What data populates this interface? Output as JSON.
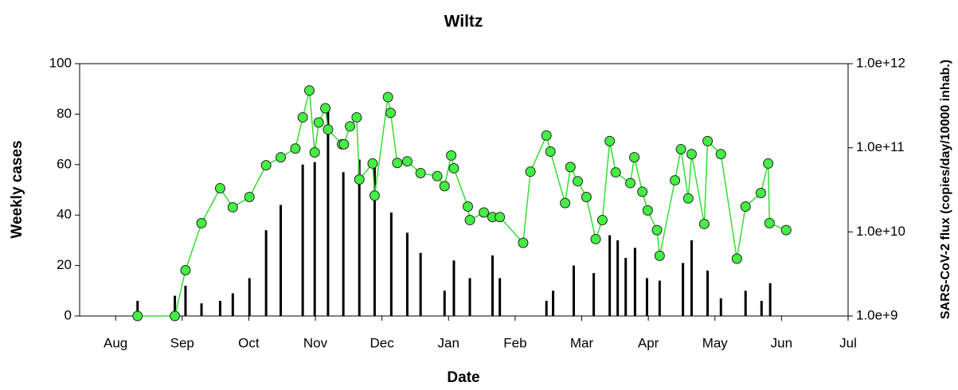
{
  "chart_data": {
    "type": "bar-line",
    "title": "Wiltz",
    "xlabel": "Date",
    "ylabel": "Weekly cases",
    "y2label": "SARS-CoV-2 flux (copies/day/10000 inhab.)",
    "xlim": [
      -0.54,
      11
    ],
    "xticks": [
      {
        "value": 0,
        "label": "Aug"
      },
      {
        "value": 1,
        "label": "Sep"
      },
      {
        "value": 2,
        "label": "Oct"
      },
      {
        "value": 3,
        "label": "Nov"
      },
      {
        "value": 4,
        "label": "Dec"
      },
      {
        "value": 5,
        "label": "Jan"
      },
      {
        "value": 6,
        "label": "Feb"
      },
      {
        "value": 7,
        "label": "Mar"
      },
      {
        "value": 8,
        "label": "Apr"
      },
      {
        "value": 9,
        "label": "May"
      },
      {
        "value": 10,
        "label": "Jun"
      },
      {
        "value": 11,
        "label": "Jul"
      }
    ],
    "ylim": [
      0,
      100
    ],
    "yticks": [
      0,
      20,
      40,
      60,
      80,
      100
    ],
    "y2lim": [
      1000000000,
      1000000000000
    ],
    "y2log": true,
    "y2ticks": [
      {
        "value": 1000000000,
        "label": "1.0e+9"
      },
      {
        "value": 10000000000,
        "label": "1.0e+10"
      },
      {
        "value": 100000000000,
        "label": "1.0e+11"
      },
      {
        "value": 1000000000000,
        "label": "1.0e+12"
      }
    ],
    "series": [
      {
        "type": "bar",
        "color": "#000000",
        "x": [
          0.33,
          0.89,
          1.05,
          1.29,
          1.57,
          1.76,
          2.01,
          2.26,
          2.48,
          2.81,
          2.99,
          3.19,
          3.42,
          3.66,
          3.89,
          4.14,
          4.38,
          4.58,
          4.94,
          5.08,
          5.32,
          5.66,
          5.77,
          6.47,
          6.57,
          6.88,
          7.18,
          7.42,
          7.54,
          7.66,
          7.8,
          7.98,
          8.17,
          8.52,
          8.65,
          8.89,
          9.09,
          9.46,
          9.7,
          9.83
        ],
        "values": [
          6,
          8,
          12,
          5,
          6,
          9,
          15,
          34,
          44,
          60,
          61,
          81,
          57,
          62,
          60,
          41,
          33,
          25,
          10,
          22,
          15,
          24,
          15,
          6,
          10,
          20,
          17,
          32,
          30,
          23,
          27,
          15,
          14,
          21,
          30,
          18,
          7,
          10,
          6,
          13
        ]
      },
      {
        "type": "line",
        "axis": "y2",
        "color": "#33dd33",
        "marker_color": "#44ee44",
        "x": [
          0.33,
          0.89,
          1.05,
          1.29,
          1.57,
          1.76,
          2.01,
          2.26,
          2.48,
          2.7,
          2.81,
          2.91,
          2.99,
          3.05,
          3.15,
          3.19,
          3.4,
          3.43,
          3.52,
          3.62,
          3.66,
          3.86,
          3.89,
          4.09,
          4.13,
          4.23,
          4.38,
          4.58,
          4.83,
          4.94,
          5.04,
          5.08,
          5.29,
          5.32,
          5.53,
          5.66,
          5.77,
          6.12,
          6.23,
          6.47,
          6.53,
          6.75,
          6.83,
          6.94,
          7.07,
          7.21,
          7.31,
          7.42,
          7.51,
          7.73,
          7.79,
          7.91,
          7.99,
          8.13,
          8.17,
          8.4,
          8.49,
          8.6,
          8.65,
          8.84,
          8.89,
          9.09,
          9.33,
          9.46,
          9.69,
          9.8,
          9.82,
          10.07
        ],
        "values": [
          1000000000,
          1000000000,
          3500000000,
          12700000000,
          33000000000,
          19600000000,
          26000000000,
          62000000000,
          77000000000,
          98000000000,
          230000000000,
          480000000000,
          88000000000,
          200000000000,
          295000000000,
          165000000000,
          110000000000,
          110000000000,
          180000000000,
          230000000000,
          42000000000,
          65000000000,
          27000000000,
          400000000000,
          260000000000,
          66000000000,
          69000000000,
          50000000000,
          46000000000,
          35000000000,
          81000000000,
          57000000000,
          20000000000,
          13800000000,
          17000000000,
          15000000000,
          15000000000,
          7400000000,
          52000000000,
          140000000000,
          90000000000,
          22000000000,
          59000000000,
          40000000000,
          26000000000,
          8200000000,
          13800000000,
          120000000000,
          51000000000,
          38000000000,
          77000000000,
          30000000000,
          18000000000,
          10500000000,
          5200000000,
          41000000000,
          96000000000,
          25000000000,
          84000000000,
          12400000000,
          120000000000,
          84000000000,
          4800000000,
          20000000000,
          29000000000,
          65000000000,
          12700000000,
          10500000000
        ]
      }
    ]
  }
}
